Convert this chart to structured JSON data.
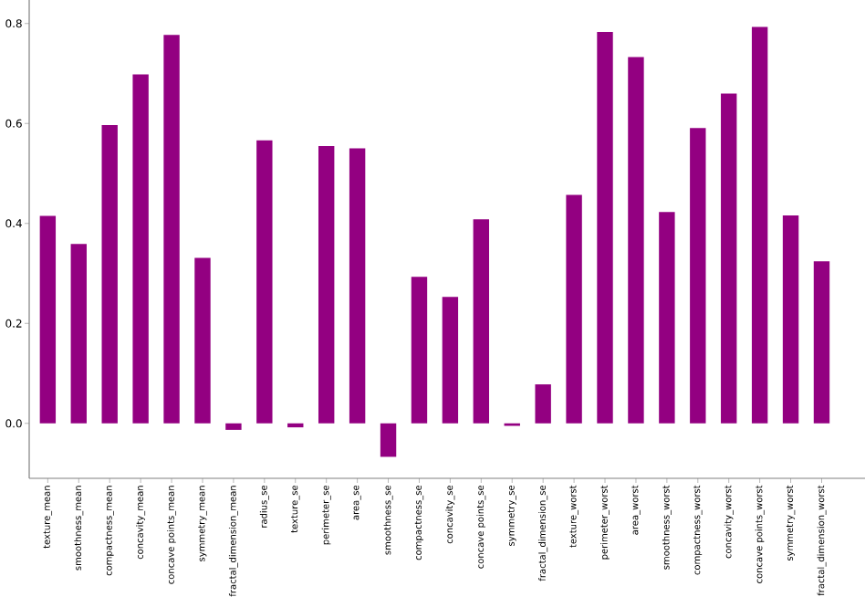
{
  "chart_data": {
    "type": "bar",
    "color": "#930081",
    "categories": [
      "texture_mean",
      "smoothness_mean",
      "compactness_mean",
      "concavity_mean",
      "concave points_mean",
      "symmetry_mean",
      "fractal_dimension_mean",
      "radius_se",
      "texture_se",
      "perimeter_se",
      "area_se",
      "smoothness_se",
      "compactness_se",
      "concavity_se",
      "concave points_se",
      "symmetry_se",
      "fractal_dimension_se",
      "texture_worst",
      "perimeter_worst",
      "area_worst",
      "smoothness_worst",
      "compactness_worst",
      "concavity_worst",
      "concave points_worst",
      "symmetry_worst",
      "fractal_dimension_worst"
    ],
    "values": [
      0.415,
      0.359,
      0.597,
      0.698,
      0.777,
      0.331,
      -0.013,
      0.566,
      -0.008,
      0.555,
      0.55,
      -0.067,
      0.293,
      0.253,
      0.408,
      -0.005,
      0.078,
      0.457,
      0.783,
      0.733,
      0.423,
      0.591,
      0.66,
      0.793,
      0.416,
      0.324
    ],
    "ylim": [
      -0.11,
      0.847
    ],
    "yticks": [
      {
        "value": 0,
        "label": "0.0"
      },
      {
        "value": 0.2,
        "label": "0.2"
      },
      {
        "value": 0.4,
        "label": "0.4"
      },
      {
        "value": 0.6,
        "label": "0.6"
      },
      {
        "value": 0.8,
        "label": "0.8"
      }
    ]
  }
}
